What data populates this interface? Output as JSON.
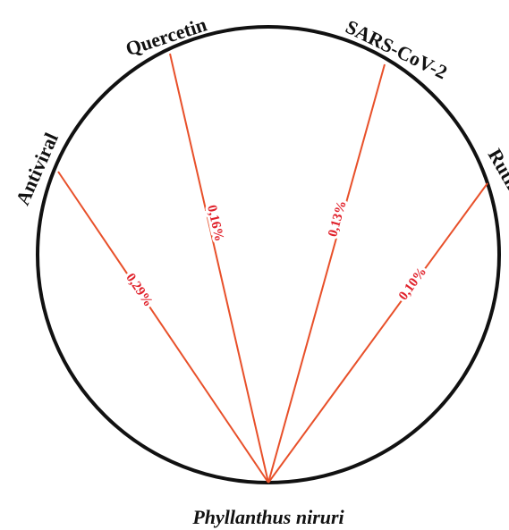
{
  "center_node": {
    "label": "Phyllanthus niruri"
  },
  "nodes": [
    {
      "label": "Antiviral"
    },
    {
      "label": "Quercetin"
    },
    {
      "label": "SARS-CoV-2"
    },
    {
      "label": "Rutin"
    }
  ],
  "edges": [
    {
      "label": "0,29%"
    },
    {
      "label": "0,16%"
    },
    {
      "label": "0,13%"
    },
    {
      "label": "0,10%"
    }
  ]
}
